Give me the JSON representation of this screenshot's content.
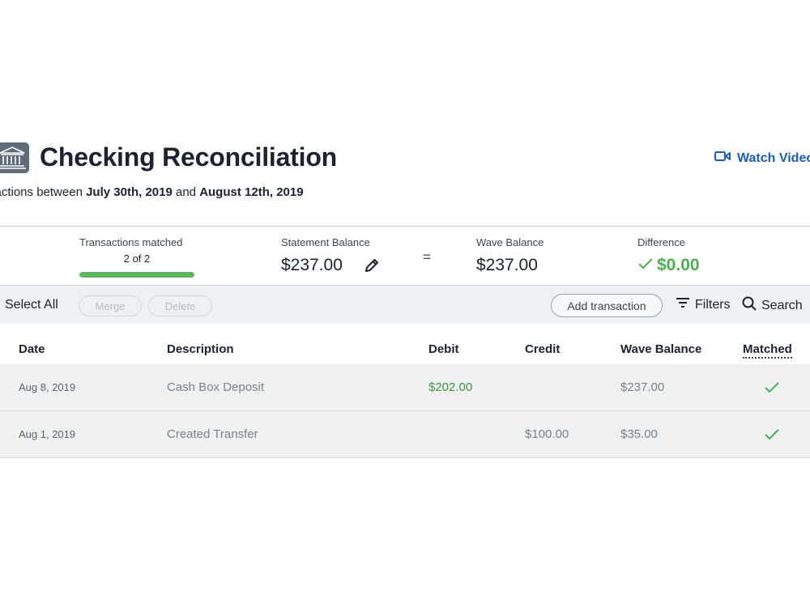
{
  "header": {
    "title": "Checking Reconciliation",
    "range_prefix": "sactions between",
    "range_start": "July 30th, 2019",
    "range_and": "and",
    "range_end": "August 12th, 2019",
    "watch_video_label": "Watch Video"
  },
  "summary": {
    "matched_label": "Transactions matched",
    "matched_count": "2 of 2",
    "matched_progress": 1.0,
    "statement_label": "Statement Balance",
    "statement_value": "$237.00",
    "equals": "=",
    "wave_label": "Wave Balance",
    "wave_value": "$237.00",
    "difference_label": "Difference",
    "difference_value": "$0.00"
  },
  "toolbar": {
    "select_all": "Select All",
    "merge": "Merge",
    "delete": "Delete",
    "add_transaction": "Add transaction",
    "filters": "Filters",
    "search": "Search"
  },
  "table": {
    "columns": {
      "date": "Date",
      "description": "Description",
      "debit": "Debit",
      "credit": "Credit",
      "wave_balance": "Wave Balance",
      "matched": "Matched"
    },
    "rows": [
      {
        "date": "Aug 8, 2019",
        "description": "Cash Box Deposit",
        "debit": "$202.00",
        "credit": "",
        "wave_balance": "$237.00",
        "matched": true
      },
      {
        "date": "Aug 1, 2019",
        "description": "Created Transfer",
        "debit": "",
        "credit": "$100.00",
        "wave_balance": "$35.00",
        "matched": true
      }
    ]
  },
  "colors": {
    "accent_blue": "#1a5fb4",
    "success_green": "#4caf50",
    "debit_green": "#3f9142",
    "progress_green": "#5cb85c"
  },
  "icons": {
    "header": "bank-icon",
    "video": "video-camera-icon",
    "edit": "pencil-icon",
    "difference": "checkmark-icon",
    "filters": "filter-icon",
    "search": "search-icon",
    "matched": "checkmark-icon"
  }
}
